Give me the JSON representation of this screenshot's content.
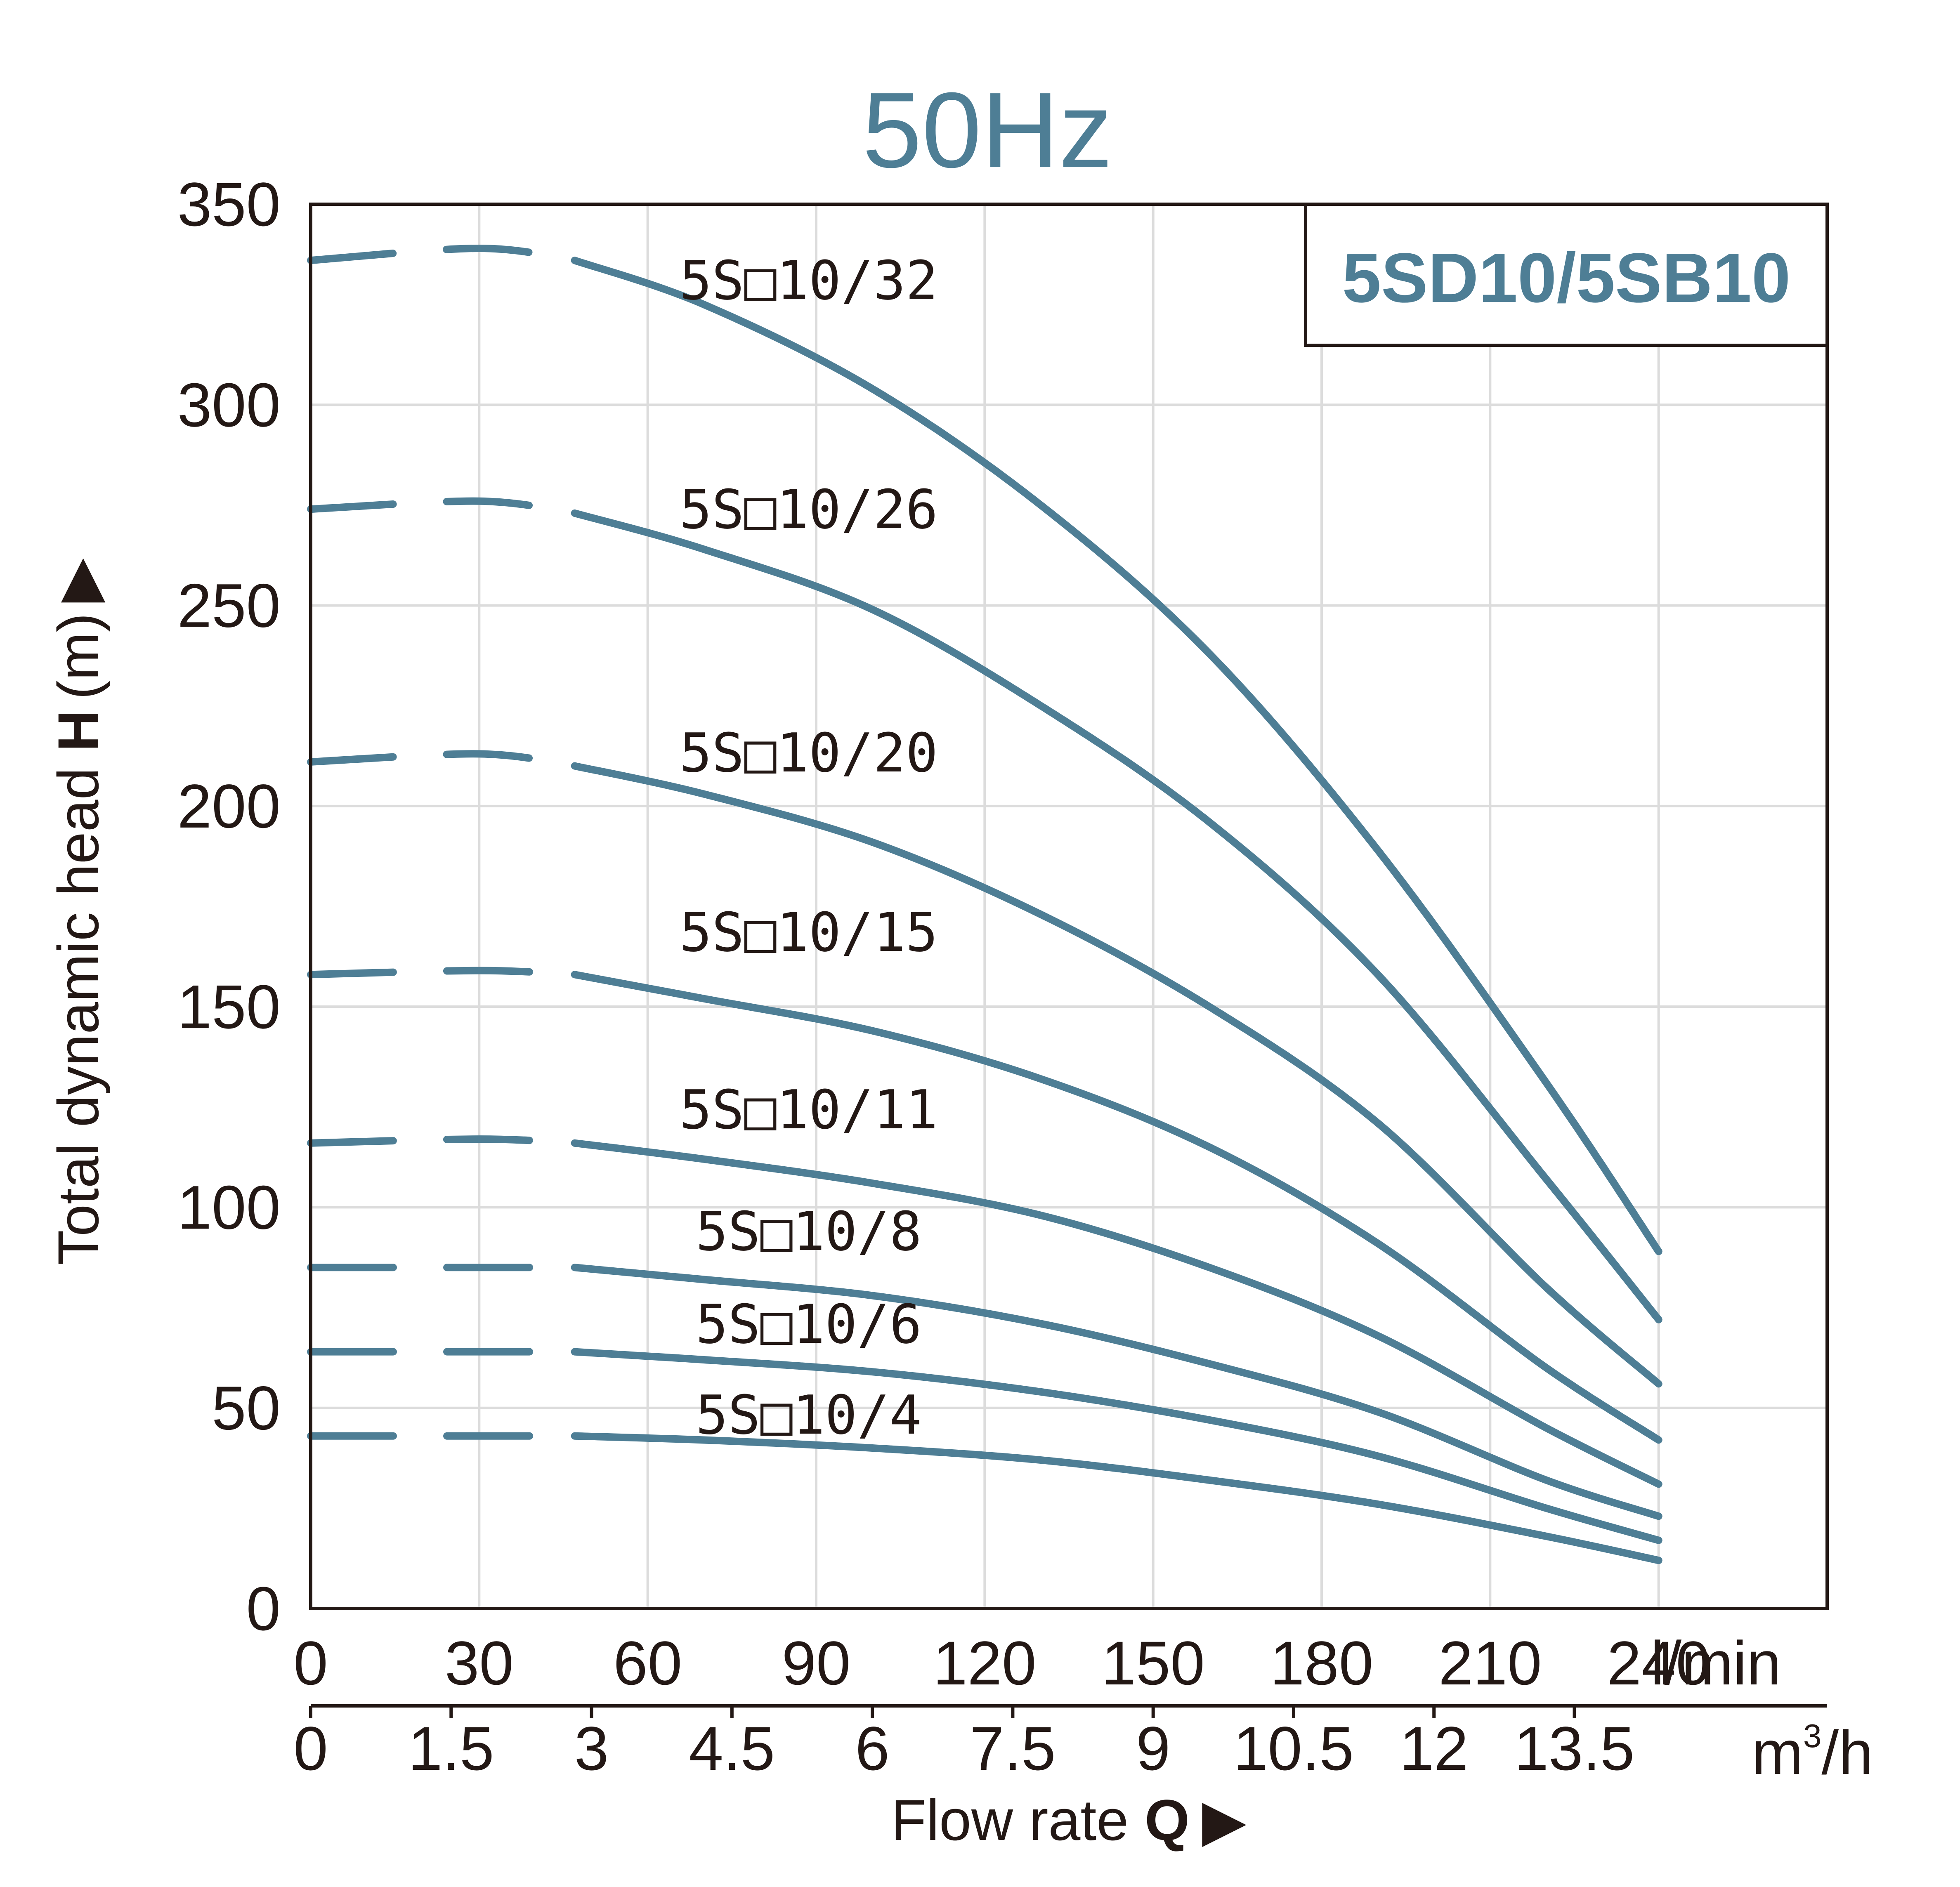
{
  "chart_data": {
    "type": "line",
    "title": "50Hz",
    "model_label": "5SD10/5SB10",
    "xlabel": {
      "text": "Flow rate ",
      "bold": "Q",
      "arrow": "▶"
    },
    "ylabel": {
      "text": "Total dynamic head ",
      "bold": "H",
      "unit": "(m)",
      "arrow": "▶"
    },
    "x_unit_lmin": "l/min",
    "x_unit_m3h": {
      "base": "m",
      "sup": "3",
      "rest": "/h"
    },
    "xlim": [
      0,
      270
    ],
    "ylim": [
      0,
      350
    ],
    "x_ticks_lmin": [
      "0",
      "30",
      "60",
      "90",
      "120",
      "150",
      "180",
      "210",
      "240"
    ],
    "x_tick_values_lmin": [
      0,
      30,
      60,
      90,
      120,
      150,
      180,
      210,
      240
    ],
    "x_ticks_m3h": [
      "0",
      "1.5",
      "3",
      "4.5",
      "6",
      "7.5",
      "9",
      "10.5",
      "12",
      "13.5"
    ],
    "x_tick_values_m3h": [
      0,
      1.5,
      3,
      4.5,
      6,
      7.5,
      9,
      10.5,
      12,
      13.5
    ],
    "y_ticks": [
      "0",
      "50",
      "100",
      "150",
      "200",
      "250",
      "300",
      "350"
    ],
    "y_tick_values": [
      0,
      50,
      100,
      150,
      200,
      250,
      300,
      350
    ],
    "grid": true,
    "dashed_until_x": 47,
    "series": [
      {
        "name": "5S□10/32",
        "x": [
          0,
          30,
          47,
          70,
          100,
          130,
          160,
          190,
          220,
          240
        ],
        "y": [
          336,
          339,
          336,
          325,
          304,
          275,
          238,
          189,
          131,
          89
        ]
      },
      {
        "name": "5S□10/26",
        "x": [
          0,
          30,
          47,
          70,
          100,
          130,
          160,
          190,
          220,
          240
        ],
        "y": [
          274,
          276,
          273,
          264,
          249,
          225,
          196,
          158,
          107,
          72
        ]
      },
      {
        "name": "5S□10/20",
        "x": [
          0,
          30,
          47,
          70,
          100,
          130,
          160,
          190,
          220,
          240
        ],
        "y": [
          211,
          213,
          210,
          203,
          191,
          173,
          150,
          121,
          80,
          56
        ]
      },
      {
        "name": "5S□10/15",
        "x": [
          0,
          30,
          47,
          70,
          100,
          130,
          160,
          190,
          220,
          240
        ],
        "y": [
          158,
          159,
          158,
          152,
          144,
          132,
          115,
          91,
          60,
          42
        ]
      },
      {
        "name": "5S□10/11",
        "x": [
          0,
          30,
          47,
          70,
          100,
          130,
          160,
          190,
          220,
          240
        ],
        "y": [
          116,
          117,
          116,
          112,
          106,
          98,
          85,
          68,
          45,
          31
        ]
      },
      {
        "name": "5S□10/8",
        "x": [
          0,
          30,
          47,
          70,
          100,
          130,
          160,
          190,
          220,
          240
        ],
        "y": [
          85,
          85,
          85,
          82,
          78,
          71,
          61,
          49,
          32,
          23
        ]
      },
      {
        "name": "5S□10/6",
        "x": [
          0,
          30,
          47,
          70,
          100,
          130,
          160,
          190,
          220,
          240
        ],
        "y": [
          64,
          64,
          64,
          62,
          59,
          54,
          47,
          38,
          25,
          17
        ]
      },
      {
        "name": "5S□10/4",
        "x": [
          0,
          30,
          47,
          70,
          100,
          130,
          160,
          190,
          220,
          240
        ],
        "y": [
          43,
          43,
          43,
          42,
          40,
          37,
          32,
          26,
          18,
          12
        ]
      }
    ],
    "colors": {
      "curve": "#4e7e95",
      "title": "#4e7e95",
      "axis": "#231815",
      "grid": "#dcdcdc",
      "text": "#231815"
    }
  }
}
